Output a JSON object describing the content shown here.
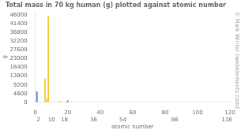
{
  "chart_data": {
    "type": "bar",
    "title": "Total mass in 70 kg human (g) plotted against atomic number",
    "y_label": "g",
    "x_label": "atomic number",
    "x": [
      1,
      6,
      7,
      8,
      11,
      12,
      15,
      16,
      17,
      19,
      20,
      26,
      30,
      34
    ],
    "values": [
      5600,
      12600,
      1800,
      45500,
      100,
      19,
      780,
      140,
      95,
      140,
      1000,
      4.2,
      2.3,
      0.02
    ],
    "colors": [
      "#4472c4",
      "#f5c518",
      "#f5c518",
      "#f5c518",
      "#f5c518",
      "#f5c518",
      "#f5c518",
      "#f5c518",
      "#f5c518",
      "#4472c4",
      "#4472c4",
      "#f5c518",
      "#f5c518",
      "#f5c518"
    ],
    "xlim": [
      0,
      120
    ],
    "xticks": [
      0,
      20,
      40,
      60,
      80,
      100,
      120
    ],
    "x2lim": [
      0,
      120
    ],
    "x2ticks": [
      2,
      10,
      18,
      36,
      54,
      86,
      118
    ],
    "ylim": [
      0,
      48000
    ],
    "yticks": [
      0,
      4600,
      9200,
      13800,
      18400,
      23000,
      27600,
      32200,
      36800,
      41400,
      46000
    ],
    "annotation": "© Mark Winter (webelements.com)",
    "grid": false,
    "legend": false
  }
}
